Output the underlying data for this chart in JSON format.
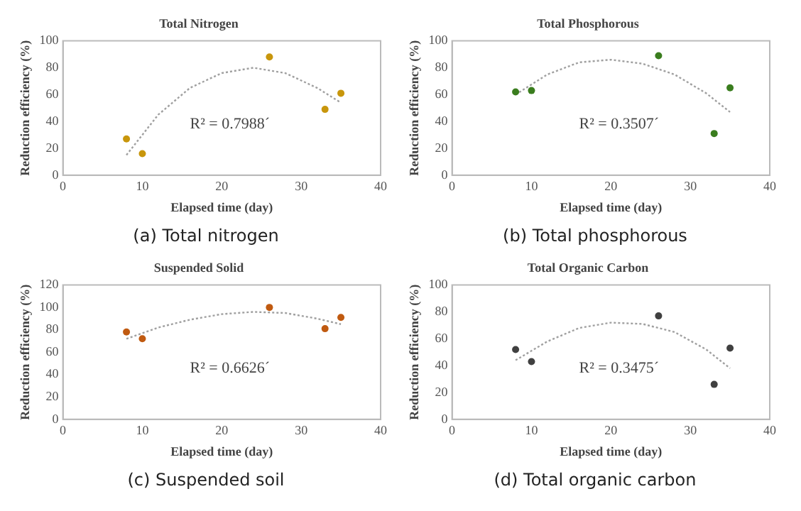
{
  "chart_data": [
    {
      "type": "scatter",
      "title": "Total Nitrogen",
      "xlabel": "Elapsed time (day)",
      "ylabel": "Reduction efficiency (%)",
      "xlim": [
        0,
        40
      ],
      "xticks": [
        0,
        10,
        20,
        30,
        40
      ],
      "ylim": [
        0,
        100
      ],
      "yticks": [
        0,
        20,
        40,
        60,
        80,
        100
      ],
      "grid": false,
      "legend": false,
      "marker": "circle",
      "annotations": [
        "R² = 0.7988´",
        "(a) Total nitrogen"
      ],
      "series": [
        {
          "type": "scatter",
          "color": "#c8960c",
          "x": [
            8,
            10,
            26,
            33,
            35
          ],
          "values": [
            27,
            16,
            88,
            49,
            61
          ]
        },
        {
          "type": "line",
          "color": "#a0a0a0",
          "line_style": "dotted",
          "marker": "none",
          "x": [
            8,
            12,
            16,
            20,
            24,
            28,
            32,
            35
          ],
          "values": [
            15,
            45,
            65,
            76,
            80,
            76,
            65,
            54
          ]
        }
      ]
    },
    {
      "type": "scatter",
      "title": "Total Phosphorous",
      "xlabel": "Elapsed time (day)",
      "ylabel": "Reduction efficiency (%)",
      "xlim": [
        0,
        40
      ],
      "xticks": [
        0,
        10,
        20,
        30,
        40
      ],
      "ylim": [
        0,
        100
      ],
      "yticks": [
        0,
        20,
        40,
        60,
        80,
        100
      ],
      "grid": false,
      "legend": false,
      "marker": "circle",
      "annotations": [
        "R² = 0.3507´",
        "(b) Total phosphorous"
      ],
      "series": [
        {
          "type": "scatter",
          "color": "#3a7d1e",
          "x": [
            8,
            10,
            26,
            33,
            35
          ],
          "values": [
            62,
            63,
            89,
            31,
            65
          ]
        },
        {
          "type": "line",
          "color": "#a0a0a0",
          "line_style": "dotted",
          "marker": "none",
          "x": [
            8,
            12,
            16,
            20,
            24,
            28,
            32,
            35
          ],
          "values": [
            60,
            75,
            84,
            86,
            83,
            75,
            61,
            47
          ]
        }
      ]
    },
    {
      "type": "scatter",
      "title": "Suspended Solid",
      "xlabel": "Elapsed time (day)",
      "ylabel": "Reduction efficiency (%)",
      "xlim": [
        0,
        40
      ],
      "xticks": [
        0,
        10,
        20,
        30,
        40
      ],
      "ylim": [
        0,
        120
      ],
      "yticks": [
        0,
        20,
        40,
        60,
        80,
        100,
        120
      ],
      "grid": false,
      "legend": false,
      "marker": "circle",
      "annotations": [
        "R² = 0.6626´",
        "(c) Suspended soil"
      ],
      "series": [
        {
          "type": "scatter",
          "color": "#c05a10",
          "x": [
            8,
            10,
            26,
            33,
            35
          ],
          "values": [
            78,
            72,
            100,
            81,
            91
          ]
        },
        {
          "type": "line",
          "color": "#a0a0a0",
          "line_style": "dotted",
          "marker": "none",
          "x": [
            8,
            12,
            16,
            20,
            24,
            28,
            32,
            35
          ],
          "values": [
            72,
            82,
            89,
            94,
            96,
            95,
            90,
            85
          ]
        }
      ]
    },
    {
      "type": "scatter",
      "title": "Total Organic Carbon",
      "xlabel": "Elapsed time (day)",
      "ylabel": "Reduction efficiency (%)",
      "xlim": [
        0,
        40
      ],
      "xticks": [
        0,
        10,
        20,
        30,
        40
      ],
      "ylim": [
        0,
        100
      ],
      "yticks": [
        0,
        20,
        40,
        60,
        80,
        100
      ],
      "grid": false,
      "legend": false,
      "marker": "circle",
      "annotations": [
        "R² = 0.3475´",
        "(d) Total organic carbon"
      ],
      "series": [
        {
          "type": "scatter",
          "color": "#404040",
          "x": [
            8,
            10,
            26,
            33,
            35
          ],
          "values": [
            52,
            43,
            77,
            26,
            53
          ]
        },
        {
          "type": "line",
          "color": "#a0a0a0",
          "line_style": "dotted",
          "marker": "none",
          "x": [
            8,
            12,
            16,
            20,
            24,
            28,
            32,
            35
          ],
          "values": [
            44,
            58,
            68,
            72,
            71,
            65,
            52,
            38
          ]
        }
      ]
    }
  ]
}
